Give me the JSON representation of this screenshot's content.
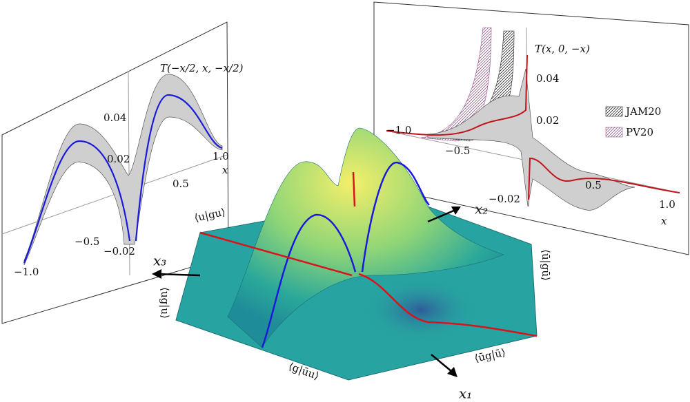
{
  "left_panel": {
    "title": "T(−x/2, x, −x/2)",
    "x_label": "x",
    "x_ticks": [
      "−1.0",
      "−0.5",
      "0.5",
      "1.0"
    ],
    "y_ticks": [
      "0.04",
      "0.02",
      "−0.02"
    ]
  },
  "right_panel": {
    "title": "T(x, 0, −x)",
    "x_label": "x",
    "x_ticks": [
      "−1.0",
      "−0.5",
      "0.5",
      "1.0"
    ],
    "y_ticks": [
      "0.04",
      "0.02",
      "−0.02"
    ],
    "legend": [
      "JAM20",
      "PV20"
    ]
  },
  "surface": {
    "axes": [
      "x₁",
      "x₂",
      "x₃"
    ],
    "corner_labels": [
      "⟨u|gu⟩",
      "⟨ū|gū⟩",
      "⟨ūg|ū⟩",
      "⟨g|ūu⟩",
      "⟨ug|u⟩"
    ]
  }
}
